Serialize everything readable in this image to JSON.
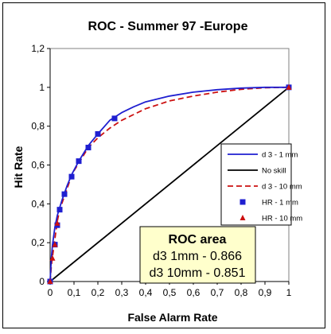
{
  "chart_data": {
    "type": "line",
    "title": "ROC - Summer 97 -Europe",
    "xlabel": "False Alarm Rate",
    "ylabel": "Hit Rate",
    "xlim": [
      0,
      1
    ],
    "ylim": [
      0,
      1.2
    ],
    "x_ticks": [
      "0",
      "0,1",
      "0,2",
      "0,3",
      "0,4",
      "0,5",
      "0,6",
      "0,7",
      "0,8",
      "0,9",
      "1"
    ],
    "y_ticks": [
      "0",
      "0,2",
      "0,4",
      "0,6",
      "0,8",
      "1",
      "1,2"
    ],
    "grid": false,
    "legend_position": "right",
    "series": [
      {
        "name": "d 3 - 1 mm",
        "kind": "line",
        "style": "solid",
        "color": "#1f1fd0",
        "x": [
          0,
          0.005,
          0.01,
          0.02,
          0.03,
          0.04,
          0.05,
          0.07,
          0.09,
          0.12,
          0.16,
          0.2,
          0.25,
          0.3,
          0.35,
          0.4,
          0.5,
          0.6,
          0.7,
          0.8,
          0.9,
          1.0
        ],
        "y": [
          0,
          0.12,
          0.19,
          0.28,
          0.34,
          0.38,
          0.42,
          0.49,
          0.55,
          0.62,
          0.7,
          0.76,
          0.83,
          0.87,
          0.9,
          0.925,
          0.955,
          0.975,
          0.988,
          0.996,
          1.0,
          1.0
        ]
      },
      {
        "name": "No skill",
        "kind": "line",
        "style": "solid",
        "color": "#000000",
        "x": [
          0,
          1
        ],
        "y": [
          0,
          1
        ]
      },
      {
        "name": "d 3 - 10 mm",
        "kind": "line",
        "style": "dashed",
        "color": "#cc1010",
        "x": [
          0,
          0.005,
          0.01,
          0.02,
          0.03,
          0.04,
          0.06,
          0.08,
          0.1,
          0.13,
          0.16,
          0.2,
          0.25,
          0.3,
          0.35,
          0.4,
          0.5,
          0.6,
          0.7,
          0.8,
          0.9,
          1.0
        ],
        "y": [
          0,
          0.08,
          0.13,
          0.22,
          0.31,
          0.37,
          0.44,
          0.51,
          0.57,
          0.63,
          0.69,
          0.74,
          0.79,
          0.83,
          0.86,
          0.89,
          0.93,
          0.955,
          0.975,
          0.99,
          0.998,
          1.0
        ]
      },
      {
        "name": "HR - 1 mm",
        "kind": "scatter",
        "marker": "square",
        "color": "#1f1fd0",
        "x": [
          0,
          0.02,
          0.03,
          0.04,
          0.06,
          0.09,
          0.12,
          0.16,
          0.2,
          0.27,
          1.0
        ],
        "y": [
          0,
          0.19,
          0.29,
          0.37,
          0.45,
          0.54,
          0.62,
          0.69,
          0.76,
          0.84,
          1.0
        ]
      },
      {
        "name": "HR - 10 mm",
        "kind": "scatter",
        "marker": "triangle",
        "color": "#cc1010",
        "x": [
          0,
          0.01,
          0.02,
          0.03,
          1.0
        ],
        "y": [
          0,
          0.12,
          0.19,
          0.3,
          1.0
        ]
      }
    ],
    "annotation": {
      "title": "ROC area",
      "lines": [
        "d3 1mm - 0.866",
        "d3 10mm - 0.851"
      ],
      "background": "#ffffcc"
    }
  }
}
